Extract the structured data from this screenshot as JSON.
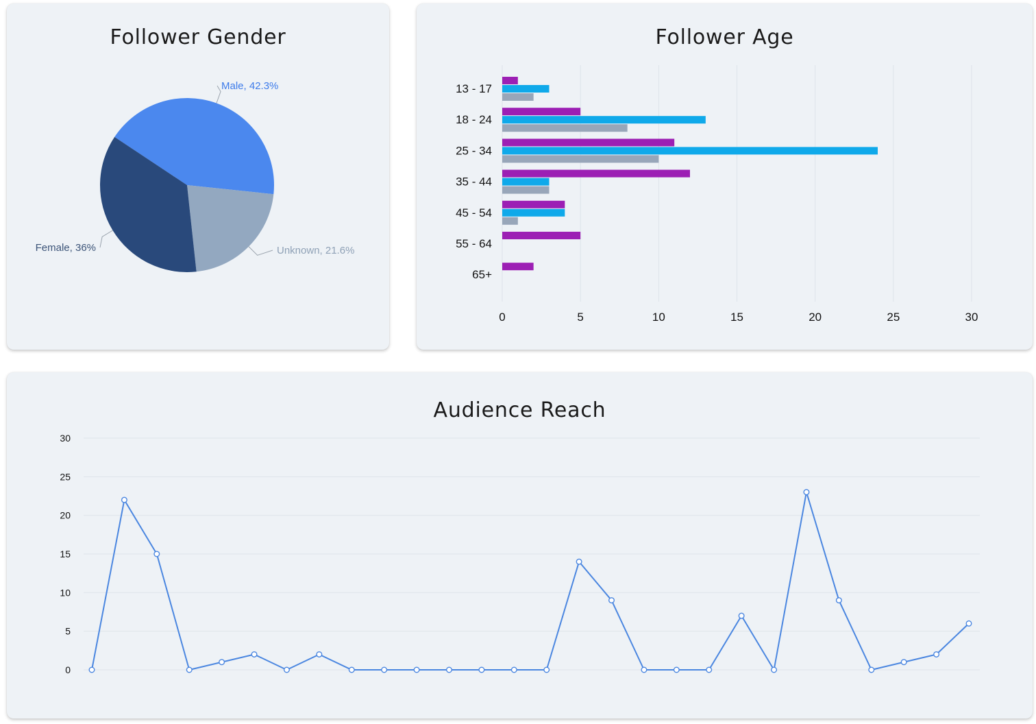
{
  "gender": {
    "title": "Follower Gender",
    "chart_data": {
      "type": "pie",
      "slices": [
        {
          "label": "Male, 42.3%",
          "name": "Male",
          "value": 42.3,
          "color": "#4b88ee",
          "label_color": "#3d7bea"
        },
        {
          "label": "Unknown, 21.6%",
          "name": "Unknown",
          "value": 21.6,
          "color": "#93a8c0",
          "label_color": "#8fa1b6"
        },
        {
          "label": "Female, 36%",
          "name": "Female",
          "value": 36,
          "color": "#29497b",
          "label_color": "#3c5478"
        }
      ]
    }
  },
  "age": {
    "title": "Follower Age",
    "chart_data": {
      "type": "bar",
      "orientation": "horizontal",
      "categories": [
        "13 - 17",
        "18 - 24",
        "25 - 34",
        "35 - 44",
        "45 - 54",
        "55 - 64",
        "65+"
      ],
      "series": [
        {
          "values": [
            1,
            5,
            11,
            12,
            4,
            5,
            2
          ],
          "color": "#9c1fb4"
        },
        {
          "values": [
            3,
            13,
            24,
            3,
            4,
            0,
            0
          ],
          "color": "#0fa9ea"
        },
        {
          "values": [
            2,
            8,
            10,
            3,
            1,
            0,
            0
          ],
          "color": "#98a6b9"
        }
      ],
      "xlim": [
        0,
        30
      ],
      "xticks": [
        "0",
        "5",
        "10",
        "15",
        "20",
        "25",
        "30"
      ],
      "grid": true
    }
  },
  "reach": {
    "title": "Audience Reach",
    "chart_data": {
      "type": "line",
      "series": [
        {
          "values": [
            0,
            22,
            15,
            0,
            1,
            2,
            0,
            2,
            0,
            0,
            0,
            0,
            0,
            0,
            0,
            14,
            9,
            0,
            0,
            0,
            7,
            0,
            23,
            9,
            0,
            1,
            2,
            6
          ],
          "color": "#4a86e0"
        }
      ],
      "ylim": [
        0,
        30
      ],
      "yticks": [
        "0",
        "5",
        "10",
        "15",
        "20",
        "25",
        "30"
      ],
      "grid": true
    }
  }
}
